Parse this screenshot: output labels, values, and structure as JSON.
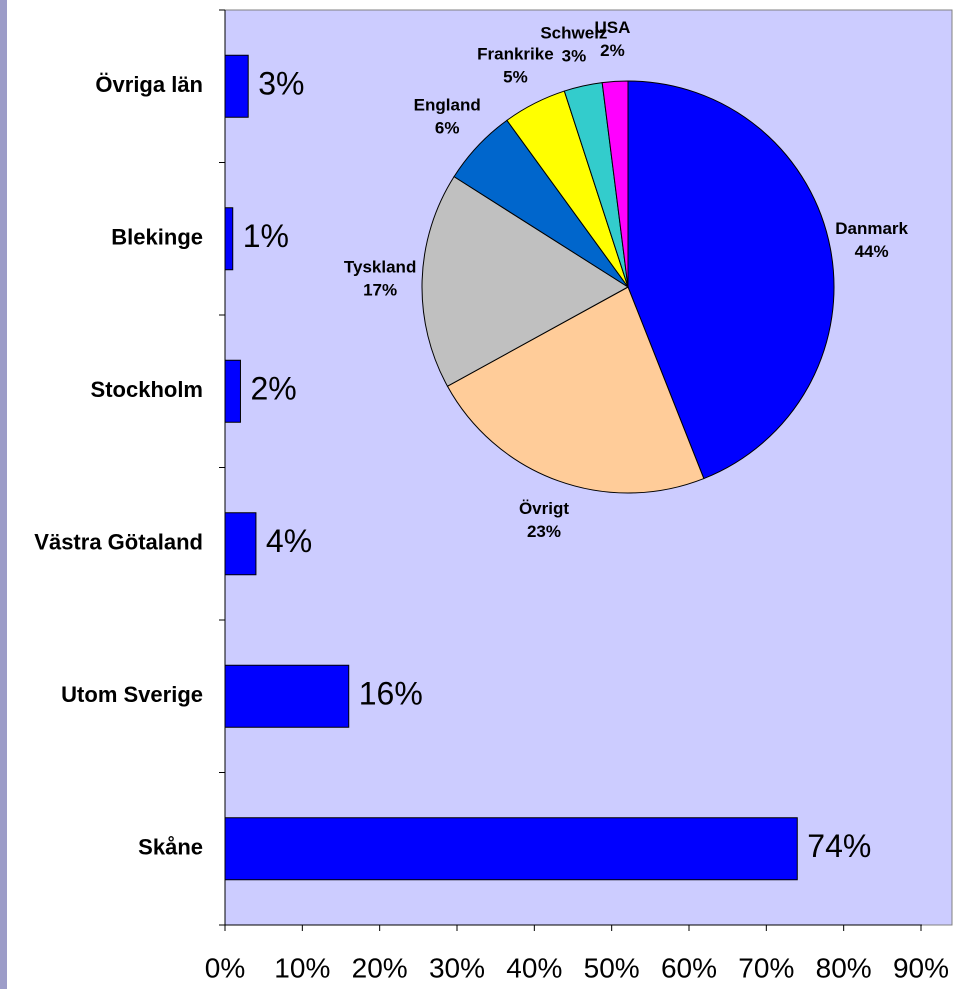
{
  "chart_data": [
    {
      "type": "bar",
      "orientation": "horizontal",
      "categories": [
        "Övriga län",
        "Blekinge",
        "Stockholm",
        "Västra Götaland",
        "Utom Sverige",
        "Skåne"
      ],
      "values": [
        3,
        1,
        2,
        4,
        16,
        74
      ],
      "value_labels": [
        "3%",
        "1%",
        "2%",
        "4%",
        "16%",
        "74%"
      ],
      "color": "#0000ff",
      "xlim": [
        0,
        90
      ],
      "xticks": [
        {
          "value": 0,
          "label": "0%"
        },
        {
          "value": 10,
          "label": "10%"
        },
        {
          "value": 20,
          "label": "20%"
        },
        {
          "value": 30,
          "label": "30%"
        },
        {
          "value": 40,
          "label": "40%"
        },
        {
          "value": 50,
          "label": "50%"
        },
        {
          "value": 60,
          "label": "60%"
        },
        {
          "value": 70,
          "label": "70%"
        },
        {
          "value": 80,
          "label": "80%"
        },
        {
          "value": 90,
          "label": "90%"
        }
      ]
    },
    {
      "type": "pie",
      "categories": [
        "Danmark",
        "Övrigt",
        "Tyskland",
        "England",
        "Frankrike",
        "Schweiz",
        "USA"
      ],
      "values": [
        44,
        23,
        17,
        6,
        5,
        3,
        2
      ],
      "value_labels": [
        "44%",
        "23%",
        "17%",
        "6%",
        "5%",
        "3%",
        "2%"
      ],
      "colors": [
        "#0000ff",
        "#ffcc99",
        "#c0c0c0",
        "#0066cc",
        "#ffff00",
        "#33cccc",
        "#ff00ff"
      ]
    }
  ]
}
